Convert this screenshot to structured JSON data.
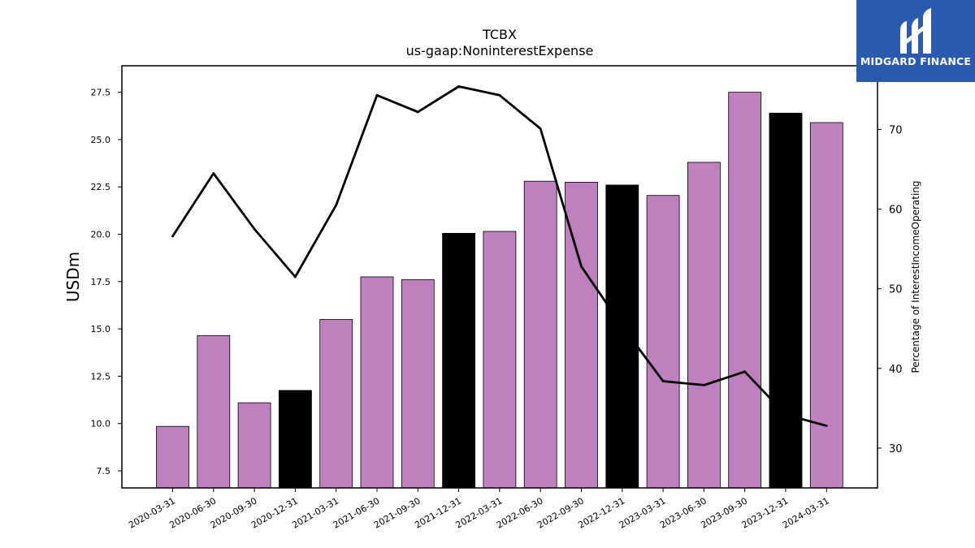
{
  "chart_data": {
    "type": "bar",
    "title": "TCBX",
    "subtitle": "us-gaap:NoninterestExpense",
    "ylabel": "USDm",
    "y2label": "Percentage of InterestIncomeOperating",
    "ylim": [
      6.6,
      28.9
    ],
    "y2lim": [
      25,
      78
    ],
    "yticks": [
      "7.5",
      "10.0",
      "12.5",
      "15.0",
      "17.5",
      "20.0",
      "22.5",
      "25.0",
      "27.5"
    ],
    "y2ticks": [
      "30",
      "40",
      "50",
      "60",
      "70"
    ],
    "categories": [
      "2020-03-31",
      "2020-06-30",
      "2020-09-30",
      "2020-12-31",
      "2021-03-31",
      "2021-06-30",
      "2021-09-30",
      "2021-12-31",
      "2022-03-31",
      "2022-06-30",
      "2022-09-30",
      "2022-12-31",
      "2023-03-31",
      "2023-06-30",
      "2023-09-30",
      "2023-12-31",
      "2024-03-31"
    ],
    "values": [
      9.85,
      14.65,
      11.1,
      11.75,
      15.5,
      17.75,
      17.6,
      20.05,
      20.15,
      22.8,
      22.75,
      22.6,
      22.05,
      23.8,
      27.5,
      26.4,
      25.9
    ],
    "highlight": [
      false,
      false,
      false,
      true,
      false,
      false,
      false,
      true,
      false,
      false,
      false,
      true,
      false,
      false,
      false,
      true,
      false
    ],
    "bar_color": "#bf80bf",
    "highlight_color": "#000000",
    "line_color": "#000000",
    "line_values": [
      56.6,
      64.5,
      57.5,
      51.5,
      60.5,
      74.3,
      72.2,
      75.4,
      74.3,
      70.1,
      52.8,
      45.3,
      38.4,
      37.9,
      39.6,
      34.2,
      32.8
    ],
    "grid": false,
    "legend": "none"
  },
  "logo": {
    "text": "MIDGARD FINANCE",
    "background": "#2b5bb0"
  }
}
